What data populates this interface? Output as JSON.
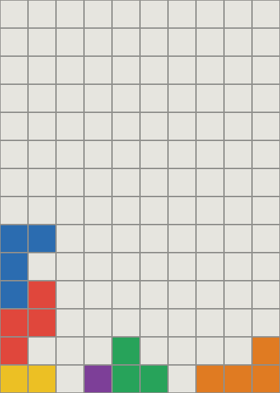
{
  "board": {
    "empty_color": "#e6e5df",
    "line_color": "#8f8f8c",
    "rows": [
      [
        null,
        null,
        null,
        null,
        null,
        null,
        null,
        null,
        null,
        null
      ],
      [
        null,
        null,
        null,
        null,
        null,
        null,
        null,
        null,
        null,
        null
      ],
      [
        null,
        null,
        null,
        null,
        null,
        null,
        null,
        null,
        null,
        null
      ],
      [
        null,
        null,
        null,
        null,
        null,
        null,
        null,
        null,
        null,
        null
      ],
      [
        null,
        null,
        null,
        null,
        null,
        null,
        null,
        null,
        null,
        null
      ],
      [
        null,
        null,
        null,
        null,
        null,
        null,
        null,
        null,
        null,
        null
      ],
      [
        null,
        null,
        null,
        null,
        null,
        null,
        null,
        null,
        null,
        null
      ],
      [
        null,
        null,
        null,
        null,
        null,
        null,
        null,
        null,
        null,
        null
      ],
      [
        "#2b6cb0",
        "#2b6cb0",
        null,
        null,
        null,
        null,
        null,
        null,
        null,
        null
      ],
      [
        "#2b6cb0",
        null,
        null,
        null,
        null,
        null,
        null,
        null,
        null,
        null
      ],
      [
        "#2b6cb0",
        "#e0473c",
        null,
        null,
        null,
        null,
        null,
        null,
        null,
        null
      ],
      [
        "#e0473c",
        "#e0473c",
        null,
        null,
        null,
        null,
        null,
        null,
        null,
        null
      ],
      [
        "#e0473c",
        null,
        null,
        null,
        "#27a35a",
        null,
        null,
        null,
        null,
        "#e07b22"
      ],
      [
        "#ecc024",
        "#ecc024",
        null,
        "#7d3f98",
        "#27a35a",
        "#27a35a",
        null,
        "#e07b22",
        "#e07b22",
        "#e07b22"
      ]
    ]
  }
}
